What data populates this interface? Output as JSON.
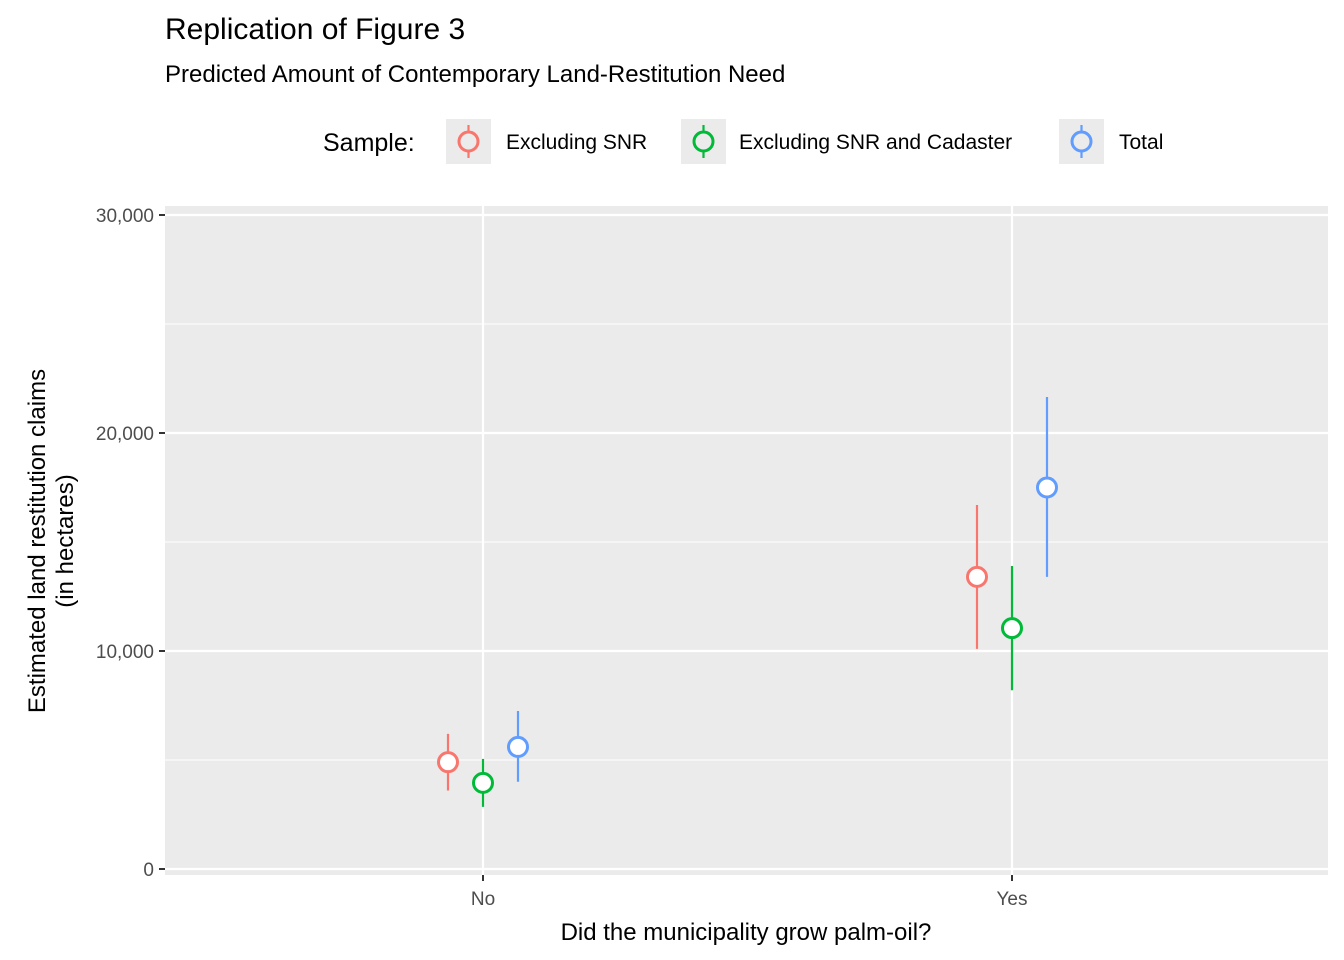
{
  "chart_data": {
    "type": "scatter",
    "title": "Replication of Figure 3",
    "subtitle": "Predicted Amount of Contemporary Land-Restitution Need",
    "xlabel": "Did the municipality grow palm-oil?",
    "ylabel_line1": "Estimated land restitution claims",
    "ylabel_line2": "(in hectares)",
    "categories": [
      "No",
      "Yes"
    ],
    "ylim": [
      0,
      30000
    ],
    "y_ticks": [
      0,
      10000,
      20000,
      30000
    ],
    "y_tick_labels": [
      "0",
      "10,000",
      "20,000",
      "30,000"
    ],
    "grid": true,
    "legend": {
      "title": "Sample:",
      "placement": "top"
    },
    "series": [
      {
        "name": "Excluding SNR",
        "color": "#F8766D",
        "values": [
          4900,
          13400
        ],
        "lower": [
          3600,
          10100
        ],
        "upper": [
          6200,
          16700
        ]
      },
      {
        "name": "Excluding SNR and Cadaster",
        "color": "#00BA38",
        "values": [
          3950,
          11050
        ],
        "lower": [
          2850,
          8200
        ],
        "upper": [
          5050,
          13900
        ]
      },
      {
        "name": "Total",
        "color": "#619CFF",
        "values": [
          5600,
          17500
        ],
        "lower": [
          4000,
          13400
        ],
        "upper": [
          7250,
          21650
        ]
      }
    ]
  }
}
